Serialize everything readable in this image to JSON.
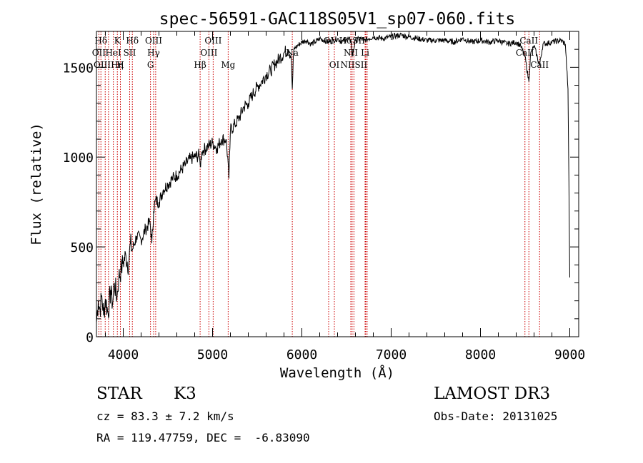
{
  "chart_data": {
    "type": "line",
    "title": "spec-56591-GAC118S05V1_sp07-060.fits",
    "xlabel": "Wavelength (Å)",
    "ylabel": "Flux (relative)",
    "xlim": [
      3700,
      9100
    ],
    "ylim": [
      0,
      1700
    ],
    "x_ticks": [
      4000,
      5000,
      6000,
      7000,
      8000,
      9000
    ],
    "x_tick_labels": [
      "4000",
      "5000",
      "6000",
      "7000",
      "8000",
      "9000"
    ],
    "y_ticks": [
      0,
      500,
      1000,
      1500
    ],
    "y_tick_labels": [
      "0",
      "500",
      "1000",
      "1500"
    ],
    "line_color": "#000000",
    "marker_color": "#cc0000",
    "series": [
      {
        "name": "spectrum",
        "x": [
          3700,
          3720,
          3740,
          3760,
          3780,
          3800,
          3830,
          3860,
          3880,
          3900,
          3930,
          3950,
          3980,
          4000,
          4030,
          4060,
          4080,
          4100,
          4150,
          4200,
          4250,
          4300,
          4320,
          4340,
          4360,
          4400,
          4450,
          4500,
          4550,
          4600,
          4650,
          4700,
          4750,
          4800,
          4850,
          4862,
          4880,
          4900,
          4950,
          5000,
          5050,
          5100,
          5150,
          5170,
          5183,
          5200,
          5250,
          5300,
          5350,
          5400,
          5450,
          5500,
          5550,
          5600,
          5650,
          5700,
          5750,
          5800,
          5850,
          5880,
          5893,
          5910,
          5950,
          6000,
          6050,
          6100,
          6150,
          6200,
          6250,
          6300,
          6350,
          6400,
          6450,
          6500,
          6550,
          6563,
          6600,
          6650,
          6700,
          6750,
          6800,
          6900,
          7000,
          7100,
          7200,
          7300,
          7400,
          7500,
          7600,
          7700,
          7800,
          7900,
          8000,
          8100,
          8200,
          8300,
          8400,
          8450,
          8498,
          8542,
          8560,
          8600,
          8662,
          8700,
          8800,
          8900,
          8950,
          8980,
          9000
        ],
        "y": [
          80,
          200,
          150,
          230,
          120,
          210,
          130,
          260,
          180,
          300,
          220,
          330,
          380,
          420,
          450,
          400,
          520,
          480,
          560,
          540,
          600,
          640,
          520,
          700,
          760,
          750,
          820,
          850,
          880,
          900,
          930,
          960,
          990,
          1000,
          1010,
          950,
          1030,
          1040,
          1060,
          1080,
          1050,
          1100,
          1100,
          1000,
          880,
          1150,
          1180,
          1220,
          1280,
          1300,
          1350,
          1390,
          1420,
          1460,
          1480,
          1520,
          1550,
          1580,
          1600,
          1560,
          1380,
          1600,
          1620,
          1640,
          1650,
          1630,
          1640,
          1660,
          1650,
          1640,
          1650,
          1660,
          1640,
          1660,
          1650,
          1560,
          1650,
          1660,
          1650,
          1660,
          1670,
          1660,
          1670,
          1680,
          1670,
          1660,
          1650,
          1650,
          1650,
          1640,
          1660,
          1640,
          1650,
          1640,
          1650,
          1630,
          1640,
          1620,
          1560,
          1420,
          1570,
          1620,
          1510,
          1630,
          1640,
          1650,
          1630,
          1380,
          330
        ]
      }
    ],
    "spectral_lines": [
      {
        "label": "Hδ",
        "wavelength": 3750,
        "row": 1
      },
      {
        "label": "K",
        "wavelength": 3934,
        "row": 1
      },
      {
        "label": "Hδ",
        "wavelength": 4102,
        "row": 1
      },
      {
        "label": "OIII",
        "wavelength": 4340,
        "row": 1
      },
      {
        "label": "OIII",
        "wavelength": 5007,
        "row": 1
      },
      {
        "label": "OI",
        "wavelength": 6300,
        "row": 1
      },
      {
        "label": "HαSII",
        "wavelength": 6563,
        "row": 1
      },
      {
        "label": "CaII",
        "wavelength": 8542,
        "row": 1
      },
      {
        "label": "OII",
        "wavelength": 3727,
        "row": 2
      },
      {
        "label": "HeI",
        "wavelength": 3889,
        "row": 2
      },
      {
        "label": "SII",
        "wavelength": 4072,
        "row": 2
      },
      {
        "label": "Hγ",
        "wavelength": 4340,
        "row": 2
      },
      {
        "label": "OIII",
        "wavelength": 4959,
        "row": 2
      },
      {
        "label": "Na",
        "wavelength": 5893,
        "row": 2
      },
      {
        "label": "NII",
        "wavelength": 6548,
        "row": 2
      },
      {
        "label": "Li",
        "wavelength": 6708,
        "row": 2
      },
      {
        "label": "CaII",
        "wavelength": 8498,
        "row": 2
      },
      {
        "label": "OIIIHη",
        "wavelength": 3835,
        "row": 3
      },
      {
        "label": "H",
        "wavelength": 3968,
        "row": 3
      },
      {
        "label": "G",
        "wavelength": 4305,
        "row": 3
      },
      {
        "label": "Hβ",
        "wavelength": 4861,
        "row": 3
      },
      {
        "label": "Mg",
        "wavelength": 5175,
        "row": 3
      },
      {
        "label": "OI",
        "wavelength": 6364,
        "row": 3
      },
      {
        "label": "NIISII",
        "wavelength": 6583,
        "row": 3
      },
      {
        "label": "CaII",
        "wavelength": 8662,
        "row": 3
      }
    ],
    "marker_wavelengths": [
      3727,
      3750,
      3798,
      3835,
      3889,
      3934,
      3968,
      4072,
      4102,
      4305,
      4340,
      4363,
      4861,
      4959,
      5007,
      5175,
      5893,
      6300,
      6364,
      6548,
      6563,
      6583,
      6708,
      6716,
      6731,
      8498,
      8542,
      8662
    ]
  },
  "info": {
    "object_class": "STAR",
    "subclass": "K3",
    "survey": "LAMOST DR3",
    "cz": "cz = 83.3 ± 7.2 km/s",
    "obs_date": "Obs-Date: 20131025",
    "coords": "RA = 119.47759, DEC =  -6.83090"
  }
}
